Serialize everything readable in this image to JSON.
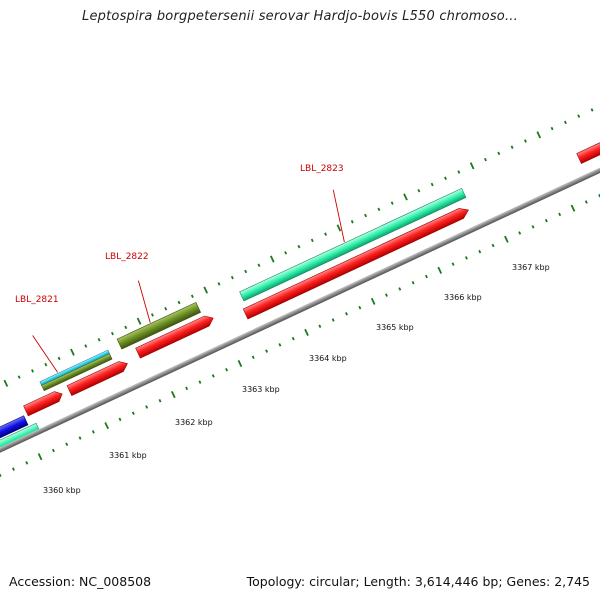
{
  "title": "Leptospira borgpetersenii serovar Hardjo-bovis L550 chromoso...",
  "footer": {
    "accession": "Accession: NC_008508",
    "summary": "Topology: circular; Length: 3,614,446 bp; Genes: 2,745"
  },
  "scale_labels": [
    "3360 kbp",
    "3361 kbp",
    "3362 kbp",
    "3363 kbp",
    "3364 kbp",
    "3365 kbp",
    "3366 kbp",
    "3367 kbp"
  ],
  "gene_labels": [
    "LBL_2821",
    "LBL_2822",
    "LBL_2823"
  ],
  "colors": {
    "backbone": "#808080",
    "cds": "#ff2020",
    "gene_aqua": "#2ef0a8",
    "gene_olive": "#6b8e23",
    "gene_cyan": "#20c8e8",
    "gene_blue": "#1010e0",
    "tick_green": "#1a7a1a",
    "label_red": "#cc0000"
  }
}
